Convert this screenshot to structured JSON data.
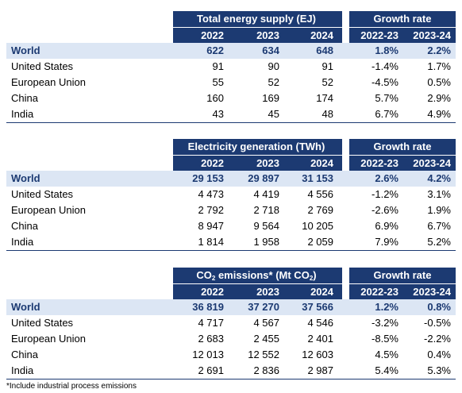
{
  "tables": [
    {
      "title": "Total energy supply (EJ)",
      "growth_title": "Growth rate",
      "years": [
        "2022",
        "2023",
        "2024"
      ],
      "growth_years": [
        "2022-23",
        "2023-24"
      ],
      "rows": [
        {
          "name": "World",
          "v": [
            "622",
            "634",
            "648"
          ],
          "g": [
            "1.8%",
            "2.2%"
          ]
        },
        {
          "name": "United States",
          "v": [
            "91",
            "90",
            "91"
          ],
          "g": [
            "-1.4%",
            "1.7%"
          ]
        },
        {
          "name": "European Union",
          "v": [
            "55",
            "52",
            "52"
          ],
          "g": [
            "-4.5%",
            "0.5%"
          ]
        },
        {
          "name": "China",
          "v": [
            "160",
            "169",
            "174"
          ],
          "g": [
            "5.7%",
            "2.9%"
          ]
        },
        {
          "name": "India",
          "v": [
            "43",
            "45",
            "48"
          ],
          "g": [
            "6.7%",
            "4.9%"
          ]
        }
      ]
    },
    {
      "title": "Electricity generation (TWh)",
      "growth_title": "Growth rate",
      "years": [
        "2022",
        "2023",
        "2024"
      ],
      "growth_years": [
        "2022-23",
        "2023-24"
      ],
      "rows": [
        {
          "name": "World",
          "v": [
            "29 153",
            "29 897",
            "31 153"
          ],
          "g": [
            "2.6%",
            "4.2%"
          ]
        },
        {
          "name": "United States",
          "v": [
            "4 473",
            "4 419",
            "4 556"
          ],
          "g": [
            "-1.2%",
            "3.1%"
          ]
        },
        {
          "name": "European Union",
          "v": [
            "2 792",
            "2 718",
            "2 769"
          ],
          "g": [
            "-2.6%",
            "1.9%"
          ]
        },
        {
          "name": "China",
          "v": [
            "8 947",
            "9 564",
            "10 205"
          ],
          "g": [
            "6.9%",
            "6.7%"
          ]
        },
        {
          "name": "India",
          "v": [
            "1 814",
            "1 958",
            "2 059"
          ],
          "g": [
            "7.9%",
            "5.2%"
          ]
        }
      ]
    },
    {
      "title_pre": "CO",
      "title_sub": "2",
      "title_mid": " emissions* (Mt CO",
      "title_sub2": "2",
      "title_post": ")",
      "growth_title": "Growth rate",
      "years": [
        "2022",
        "2023",
        "2024"
      ],
      "growth_years": [
        "2022-23",
        "2023-24"
      ],
      "rows": [
        {
          "name": "World",
          "v": [
            "36 819",
            "37 270",
            "37 566"
          ],
          "g": [
            "1.2%",
            "0.8%"
          ]
        },
        {
          "name": "United States",
          "v": [
            "4 717",
            "4 567",
            "4 546"
          ],
          "g": [
            "-3.2%",
            "-0.5%"
          ]
        },
        {
          "name": "European Union",
          "v": [
            "2 683",
            "2 455",
            "2 401"
          ],
          "g": [
            "-8.5%",
            "-2.2%"
          ]
        },
        {
          "name": "China",
          "v": [
            "12 013",
            "12 552",
            "12 603"
          ],
          "g": [
            "4.5%",
            "0.4%"
          ]
        },
        {
          "name": "India",
          "v": [
            "2 691",
            "2 836",
            "2 987"
          ],
          "g": [
            "5.4%",
            "5.3%"
          ]
        }
      ]
    }
  ],
  "footnote": "*Include industrial process emissions",
  "colors": {
    "header": "#1c3a72",
    "world_row": "#dce6f4"
  }
}
